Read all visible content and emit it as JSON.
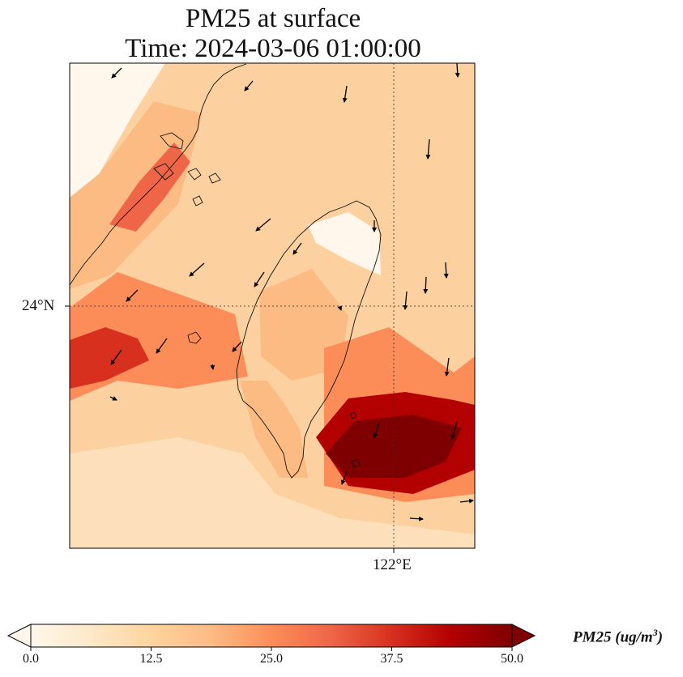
{
  "title": {
    "line1": "PM25 at surface",
    "line2": "Time: 2024-03-06 01:00:00"
  },
  "map": {
    "lat_label": "24°N",
    "lon_label": "122°E",
    "gridlines": [
      {
        "type": "latitude",
        "value": 24
      },
      {
        "type": "longitude",
        "value": 122
      }
    ],
    "field": "PM25",
    "overlay": "wind vectors",
    "coastlines": "Taiwan and southeast China coast"
  },
  "colorbar": {
    "label_prefix": "PM25 (ug/m",
    "label_exp": "3",
    "label_suffix": ")",
    "ticks": [
      "0.0",
      "12.5",
      "25.0",
      "37.5",
      "50.0"
    ],
    "vmin": 0,
    "vmax": 50,
    "extend": "both",
    "colormap": "OrRd",
    "colors": [
      "#fff7ec",
      "#fee8c8",
      "#fdd49e",
      "#fdbb84",
      "#fc8d59",
      "#ef6548",
      "#d7301f",
      "#b30000",
      "#7f0000"
    ]
  }
}
